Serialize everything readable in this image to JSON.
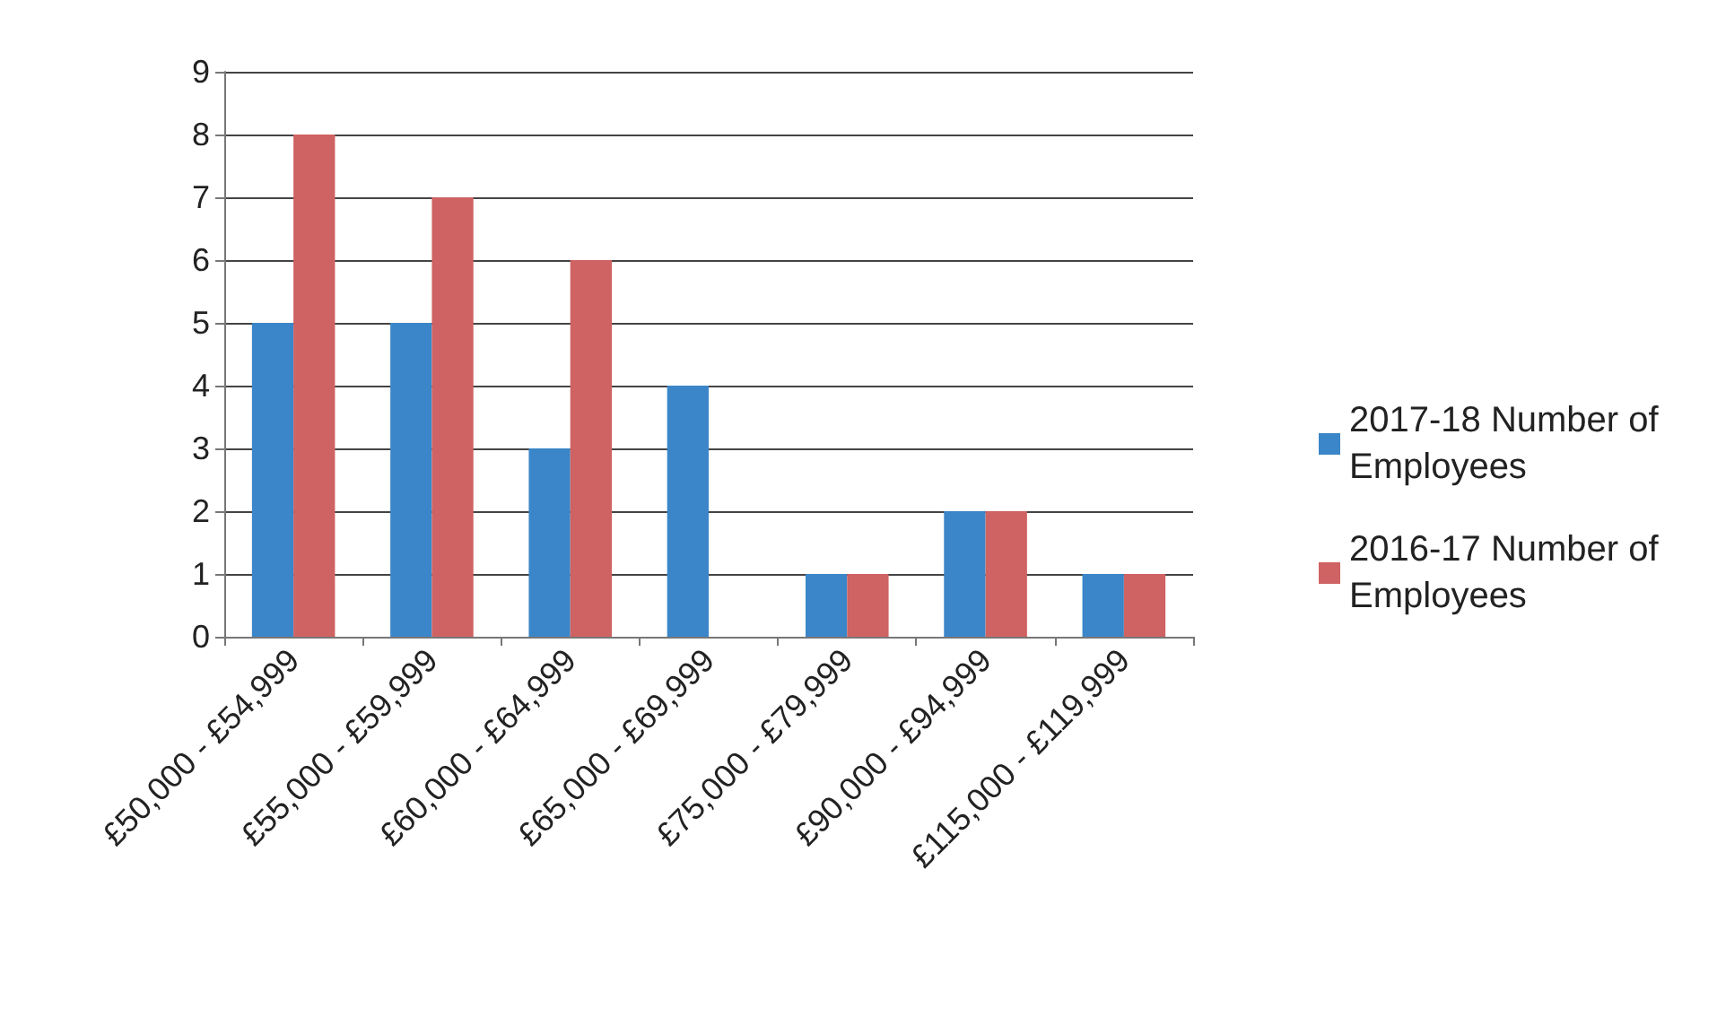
{
  "chart_data": {
    "type": "bar",
    "categories": [
      "£50,000 - £54,999",
      "£55,000 - £59,999",
      "£60,000 - £64,999",
      "£65,000 - £69,999",
      "£75,000 - £79,999",
      "£90,000 - £94,999",
      "£115,000 - £119,999"
    ],
    "series": [
      {
        "name": "2017-18 Number of Employees",
        "color": "#3a86c8",
        "values": [
          5,
          5,
          3,
          4,
          1,
          2,
          1
        ]
      },
      {
        "name": "2016-17 Number of Employees",
        "color": "#cf6262",
        "values": [
          8,
          7,
          6,
          0,
          1,
          2,
          1
        ]
      }
    ],
    "ylim": [
      0,
      9
    ],
    "yticks": [
      0,
      1,
      2,
      3,
      4,
      5,
      6,
      7,
      8,
      9
    ],
    "grid": "y",
    "legend": "right"
  }
}
